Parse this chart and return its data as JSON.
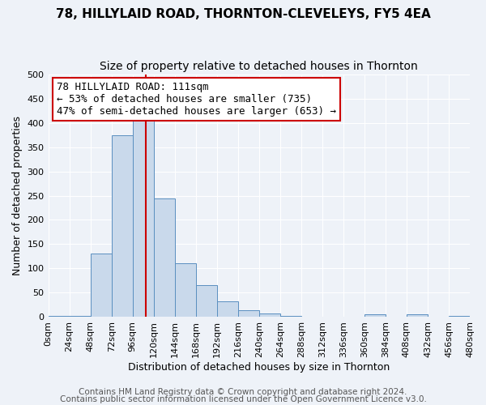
{
  "title": "78, HILLYLAID ROAD, THORNTON-CLEVELEYS, FY5 4EA",
  "subtitle": "Size of property relative to detached houses in Thornton",
  "xlabel": "Distribution of detached houses by size in Thornton",
  "ylabel": "Number of detached properties",
  "bin_edges": [
    0,
    24,
    48,
    72,
    96,
    120,
    144,
    168,
    192,
    216,
    240,
    264,
    288,
    312,
    336,
    360,
    384,
    408,
    432,
    456,
    480
  ],
  "bin_heights": [
    3,
    3,
    130,
    375,
    415,
    245,
    110,
    65,
    33,
    14,
    8,
    3,
    0,
    0,
    0,
    5,
    0,
    5,
    0,
    3
  ],
  "bar_color": "#c9d9eb",
  "bar_edge_color": "#5a8fc0",
  "vline_color": "#cc0000",
  "vline_x": 111,
  "annotation_line1": "78 HILLYLAID ROAD: 111sqm",
  "annotation_line2": "← 53% of detached houses are smaller (735)",
  "annotation_line3": "47% of semi-detached houses are larger (653) →",
  "annotation_bbox_edgecolor": "#cc0000",
  "annotation_bbox_facecolor": "#ffffff",
  "ylim": [
    0,
    500
  ],
  "tick_labels": [
    "0sqm",
    "24sqm",
    "48sqm",
    "72sqm",
    "96sqm",
    "120sqm",
    "144sqm",
    "168sqm",
    "192sqm",
    "216sqm",
    "240sqm",
    "264sqm",
    "288sqm",
    "312sqm",
    "336sqm",
    "360sqm",
    "384sqm",
    "408sqm",
    "432sqm",
    "456sqm",
    "480sqm"
  ],
  "footer_line1": "Contains HM Land Registry data © Crown copyright and database right 2024.",
  "footer_line2": "Contains public sector information licensed under the Open Government Licence v3.0.",
  "bg_color": "#eef2f8",
  "grid_color": "#ffffff",
  "title_fontsize": 11,
  "subtitle_fontsize": 10,
  "axis_label_fontsize": 9,
  "tick_fontsize": 8,
  "annotation_fontsize": 9,
  "footer_fontsize": 7.5
}
